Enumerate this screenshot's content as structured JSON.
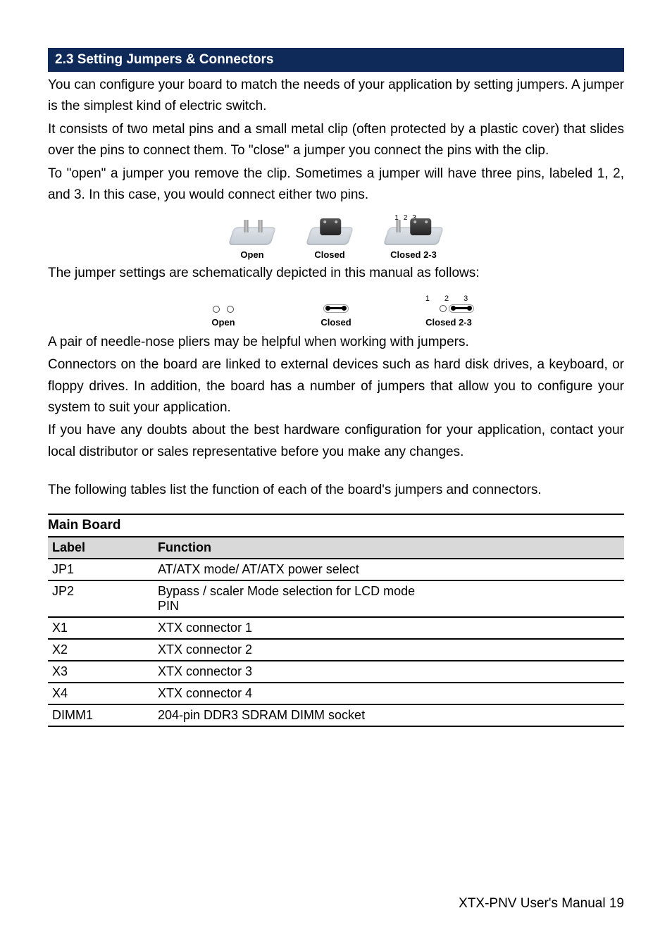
{
  "colors": {
    "section_bar_bg": "#0f2a58",
    "section_bar_fg": "#ffffff",
    "body_text": "#000000",
    "table_header_bg": "#d9d9d9",
    "rule_color": "#000000"
  },
  "typography": {
    "body_fontsize_pt": 14,
    "illust_label_fontsize_pt": 10,
    "table_fontsize_pt": 13
  },
  "section_title": "2.3 Setting Jumpers & Connectors",
  "paragraphs": {
    "p1a": "You can configure your board to match the needs of your application by setting jumpers. A jumper is the simplest kind of electric switch.",
    "p1b": "It consists of two metal pins and a small metal clip (often protected by a plastic cover) that slides over the pins to connect them. To \"close\" a jumper you connect the pins with the clip.",
    "p1c": "To \"open\" a jumper you remove the clip. Sometimes a jumper will have three pins, labeled 1, 2, and 3. In this case, you would connect either two pins.",
    "p2": "The jumper settings are schematically depicted in this manual as follows:",
    "p3a": "A pair of needle-nose pliers may be helpful when working with jumpers.",
    "p3b": "Connectors on the board are linked to external devices such as hard disk drives, a keyboard, or floppy drives. In addition, the board has a number of jumpers that allow you to configure your system to suit your application.",
    "p3c": "If you have any doubts about the best hardware configuration for your application, contact your local distributor or sales representative before you make any changes.",
    "p4": "The following tables list the function of each of the board's jumpers and connectors."
  },
  "illust_labels": {
    "open": "Open",
    "closed": "Closed",
    "closed23": "Closed 2-3",
    "pins123": "1 2 3"
  },
  "table": {
    "title": "Main Board ",
    "columns": [
      "Label",
      "Function"
    ],
    "rows": [
      [
        "JP1",
        "AT/ATX mode/ AT/ATX power select"
      ],
      [
        "JP2",
        "Bypass / scaler Mode selection for LCD mode\nPIN"
      ],
      [
        "X1",
        "XTX connector 1"
      ],
      [
        "X2",
        "XTX connector 2"
      ],
      [
        "X3",
        "XTX connector 3"
      ],
      [
        "X4",
        "XTX connector 4"
      ],
      [
        "DIMM1",
        "204-pin DDR3 SDRAM DIMM socket"
      ]
    ]
  },
  "footer": "XTX-PNV  User's  Manual 19"
}
